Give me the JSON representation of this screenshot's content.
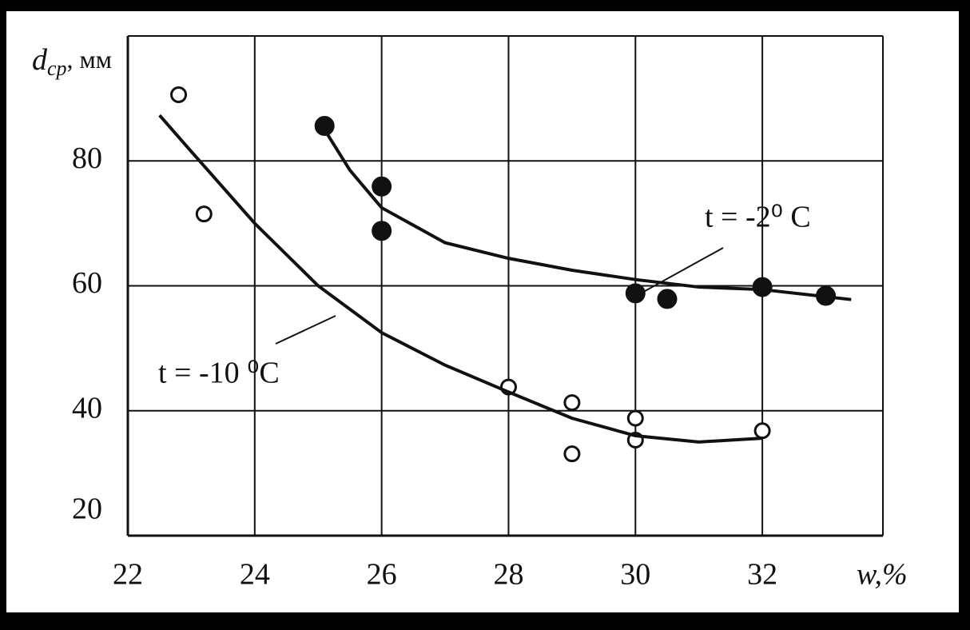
{
  "chart_data": {
    "type": "scatter",
    "y_label": [
      "d",
      "cp",
      ", мм"
    ],
    "x_label": "w,%",
    "xlim": [
      22,
      33.9
    ],
    "ylim": [
      20,
      100
    ],
    "xticks": [
      22,
      24,
      26,
      28,
      30,
      32
    ],
    "yticks": [
      20,
      40,
      60,
      80
    ],
    "grid": true,
    "series": [
      {
        "marker": "open",
        "color": "#111",
        "x": [
          22.8,
          23.2,
          28,
          29,
          29,
          30,
          30,
          32
        ],
        "values": [
          90.6,
          71.5,
          43.8,
          41.3,
          33.1,
          38.8,
          35.3,
          36.8
        ]
      },
      {
        "marker": "filled",
        "color": "#111",
        "x": [
          25.1,
          26,
          26,
          30,
          30.5,
          32,
          33
        ],
        "values": [
          85.6,
          75.9,
          68.8,
          58.8,
          57.9,
          59.8,
          58.4
        ]
      },
      {
        "marker": "line",
        "color": "#111",
        "x": [
          22.5,
          23,
          24,
          25,
          26,
          27,
          28,
          29,
          30,
          31,
          32
        ],
        "values": [
          87.3,
          81.5,
          70,
          60,
          52.5,
          47.3,
          43,
          38.8,
          36,
          35,
          35.6
        ]
      },
      {
        "marker": "line",
        "color": "#111",
        "x": [
          25.1,
          25.5,
          26,
          27,
          28,
          29,
          30,
          31,
          32,
          33.4
        ],
        "values": [
          85,
          78.5,
          72.5,
          66.9,
          64.4,
          62.5,
          61,
          59.8,
          59.4,
          57.8
        ]
      }
    ],
    "annotations": [
      "t = -2⁰ C",
      "t = -10 ⁰C"
    ]
  }
}
